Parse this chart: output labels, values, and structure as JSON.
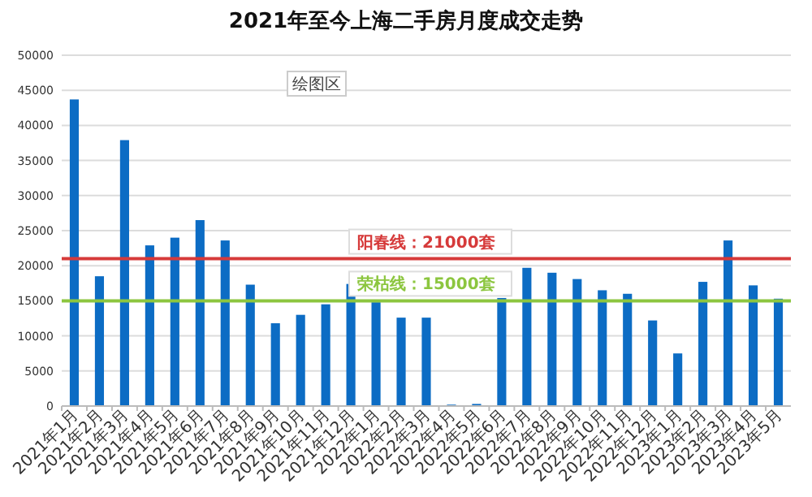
{
  "chart_data": {
    "type": "bar",
    "title": "2021年至今上海二手房月度成交走势",
    "categories": [
      "2021年1月",
      "2021年2月",
      "2021年3月",
      "2021年4月",
      "2021年5月",
      "2021年6月",
      "2021年7月",
      "2021年8月",
      "2021年9月",
      "2021年10月",
      "2021年11月",
      "2021年12月",
      "2022年1月",
      "2022年2月",
      "2022年3月",
      "2022年4月",
      "2022年5月",
      "2022年6月",
      "2022年7月",
      "2022年8月",
      "2022年9月",
      "2022年10月",
      "2022年11月",
      "2022年12月",
      "2023年1月",
      "2023年2月",
      "2023年3月",
      "2023年4月",
      "2023年5月"
    ],
    "values": [
      43700,
      18500,
      37900,
      22900,
      24000,
      26500,
      23600,
      17300,
      11800,
      13000,
      14500,
      17400,
      14800,
      12600,
      12600,
      200,
      300,
      15400,
      19700,
      19000,
      18100,
      16500,
      16000,
      12200,
      7500,
      17700,
      23600,
      17200,
      15300
    ],
    "color": "#0c6cc4",
    "ylim": [
      0,
      50000
    ],
    "yticks": [
      0,
      5000,
      10000,
      15000,
      20000,
      25000,
      30000,
      35000,
      40000,
      45000,
      50000
    ],
    "grid": "y",
    "ref_lines": [
      {
        "axis": "y",
        "value": 21000,
        "label": "阳春线：21000套",
        "color": "#d63a3a"
      },
      {
        "axis": "y",
        "value": 15000,
        "label": "荣枯线：15000套",
        "color": "#8cc63f"
      }
    ],
    "annotations": [
      "绘图区"
    ]
  }
}
